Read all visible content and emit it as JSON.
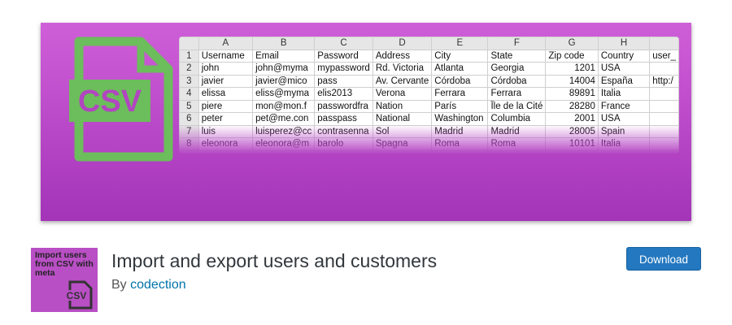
{
  "banner": {
    "icon_label": "CSV",
    "spreadsheet": {
      "columns": [
        "A",
        "B",
        "C",
        "D",
        "E",
        "F",
        "G",
        "H"
      ],
      "rows": [
        [
          "1",
          "Username",
          "Email",
          "Password",
          "Address",
          "City",
          "State",
          "Zip code",
          "Country",
          "user_"
        ],
        [
          "2",
          "john",
          "john@myma",
          "mypassword",
          "Rd. Victoria",
          "Atlanta",
          "Georgia",
          "1201",
          "USA"
        ],
        [
          "3",
          "javier",
          "javier@mico",
          "pass",
          "Av. Cervante",
          "Córdoba",
          "Córdoba",
          "14004",
          "España",
          "http:/"
        ],
        [
          "4",
          "elissa",
          "eliss@myma",
          "elis2013",
          "Verona",
          "Ferrara",
          "Ferrara",
          "89891",
          "Italia"
        ],
        [
          "5",
          "piere",
          "mon@mon.f",
          "passwordfra",
          "Nation",
          "París",
          "Île de la Cité",
          "28280",
          "France"
        ],
        [
          "6",
          "peter",
          "pet@me.con",
          "passpass",
          "National",
          "Washington",
          "Columbia",
          "2001",
          "USA"
        ],
        [
          "7",
          "luis",
          "luisperez@cc",
          "contrasenna",
          "Sol",
          "Madrid",
          "Madrid",
          "28005",
          "Spain"
        ],
        [
          "8",
          "eleonora",
          "eleonora@m",
          "barolo",
          "Spagna",
          "Roma",
          "Roma",
          "10101",
          "Italia"
        ]
      ]
    }
  },
  "plugin": {
    "icon": {
      "text": "Import users from CSV with meta",
      "badge": "CSV"
    },
    "title": "Import and export users and customers",
    "byline": "By",
    "author": "codection",
    "button": "Download"
  }
}
